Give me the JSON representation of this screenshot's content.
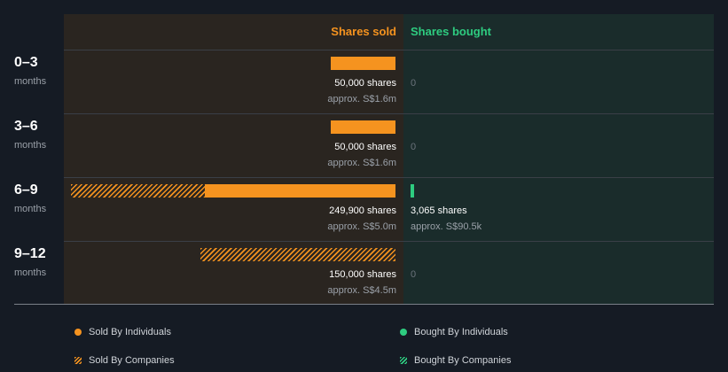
{
  "headers": {
    "sold": "Shares sold",
    "bought": "Shares bought"
  },
  "colors": {
    "sold": "#f5931f",
    "bought": "#2ecc80",
    "background": "#151b24"
  },
  "chart_data": {
    "type": "bar",
    "categories": [
      "0–3",
      "3–6",
      "6–9",
      "9–12"
    ],
    "category_unit": "months",
    "series": [
      {
        "name": "Sold By Individuals",
        "values": [
          50000,
          50000,
          147100,
          0
        ]
      },
      {
        "name": "Sold By Companies",
        "values": [
          0,
          0,
          102800,
          150000
        ]
      },
      {
        "name": "Bought By Individuals",
        "values": [
          0,
          0,
          3065,
          0
        ]
      },
      {
        "name": "Bought By Companies",
        "values": [
          0,
          0,
          0,
          0
        ]
      }
    ],
    "sold_totals": [
      "50,000 shares",
      "50,000 shares",
      "249,900 shares",
      "150,000 shares"
    ],
    "sold_values": [
      "approx. S$1.6m",
      "approx. S$1.6m",
      "approx. S$5.0m",
      "approx. S$4.5m"
    ],
    "bought_totals": [
      "0",
      "0",
      "3,065 shares",
      "0"
    ],
    "bought_values": [
      "",
      "",
      "approx. S$90.5k",
      ""
    ],
    "legend": [
      "Sold By Individuals",
      "Bought By Individuals",
      "Sold By Companies",
      "Bought By Companies"
    ],
    "legend_position": "bottom",
    "max_value": 249900
  }
}
